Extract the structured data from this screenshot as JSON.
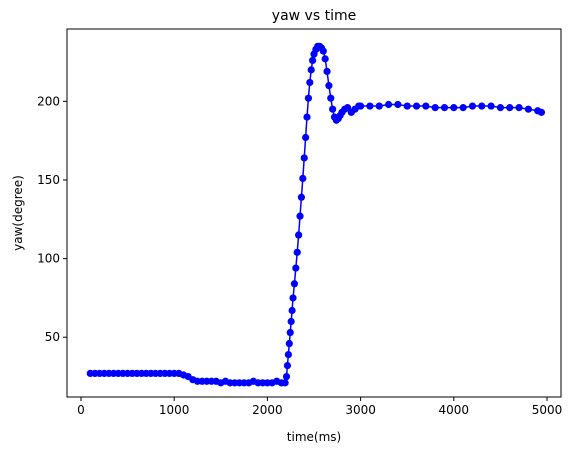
{
  "chart_data": {
    "type": "line",
    "title": "yaw vs time",
    "x_label": "time(ms)",
    "y_label": "yaw(degree)",
    "x": [
      100,
      150,
      200,
      250,
      300,
      350,
      400,
      450,
      500,
      550,
      600,
      650,
      700,
      750,
      800,
      850,
      900,
      950,
      1000,
      1050,
      1100,
      1150,
      1200,
      1250,
      1300,
      1350,
      1400,
      1450,
      1500,
      1550,
      1600,
      1650,
      1700,
      1750,
      1800,
      1850,
      1900,
      1950,
      2000,
      2050,
      2100,
      2150,
      2190,
      2205,
      2215,
      2225,
      2235,
      2245,
      2255,
      2265,
      2275,
      2290,
      2305,
      2320,
      2335,
      2350,
      2365,
      2380,
      2395,
      2410,
      2425,
      2440,
      2455,
      2470,
      2485,
      2500,
      2520,
      2540,
      2560,
      2580,
      2600,
      2620,
      2640,
      2660,
      2680,
      2700,
      2720,
      2740,
      2760,
      2780,
      2800,
      2830,
      2860,
      2900,
      2940,
      2980,
      3000,
      3100,
      3200,
      3300,
      3400,
      3500,
      3600,
      3700,
      3800,
      3900,
      4000,
      4100,
      4200,
      4300,
      4400,
      4500,
      4600,
      4700,
      4800,
      4900,
      4940
    ],
    "series": [
      {
        "name": "yaw",
        "color": "#0000ff",
        "values": [
          27,
          27,
          27,
          27,
          27,
          27,
          27,
          27,
          27,
          27,
          27,
          27,
          27,
          27,
          27,
          27,
          27,
          27,
          27,
          27,
          26,
          25,
          23,
          22,
          22,
          22,
          22,
          22,
          21,
          22,
          21,
          21,
          21,
          21,
          21,
          22,
          21,
          21,
          21,
          21,
          22,
          21,
          21,
          25,
          32,
          39,
          46,
          53,
          60,
          67,
          75,
          84,
          94,
          104,
          115,
          127,
          139,
          151,
          164,
          177,
          190,
          202,
          212,
          220,
          226,
          230,
          233,
          235,
          235,
          234,
          232,
          227,
          219,
          210,
          202,
          195,
          190,
          188,
          189,
          191,
          193,
          195,
          196,
          193,
          195,
          197,
          197,
          197,
          197,
          198,
          198,
          197,
          197,
          197,
          196,
          196,
          196,
          196,
          197,
          197,
          197,
          196,
          196,
          196,
          195,
          194,
          193
        ]
      }
    ],
    "xlim": [
      -150,
      5150
    ],
    "ylim": [
      12,
      246
    ],
    "xticks": [
      0,
      1000,
      2000,
      3000,
      4000,
      5000
    ],
    "yticks": [
      50,
      100,
      150,
      200
    ]
  }
}
